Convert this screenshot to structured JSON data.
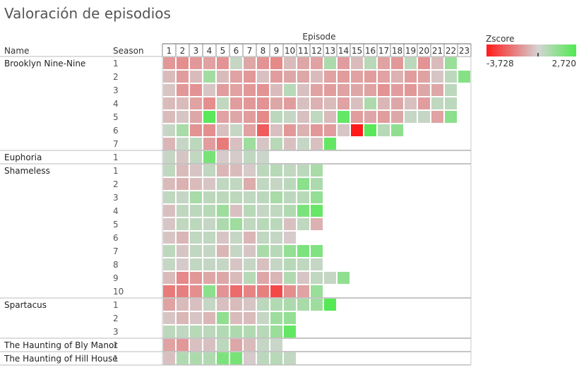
{
  "title": "Valoración de episodios",
  "chart_data": {
    "type": "heatmap",
    "title": "Valoración de episodios",
    "column_header": "Episode",
    "row_headers": [
      "Name",
      "Season"
    ],
    "episodes": [
      1,
      2,
      3,
      4,
      5,
      6,
      7,
      8,
      9,
      10,
      11,
      12,
      13,
      14,
      15,
      16,
      17,
      18,
      19,
      20,
      21,
      22,
      23
    ],
    "legend": {
      "title": "Zscore",
      "min_label": "-3,728",
      "max_label": "2,720",
      "min": -3.728,
      "max": 2.72,
      "color_low": "#ff1a1a",
      "color_mid": "#d4d4d4",
      "color_high": "#4fea4f"
    },
    "shows": [
      {
        "name": "Brooklyn Nine-Nine",
        "seasons": [
          {
            "season": "1",
            "z": [
              -1.2,
              -1.4,
              -1.2,
              -1.0,
              -1.3,
              0.3,
              -0.9,
              -1.3,
              -1.5,
              -0.5,
              -0.9,
              -1.0,
              0.8,
              -1.1,
              -0.5,
              0.6,
              -1.0,
              -1.2,
              0.5,
              -1.3,
              -0.5,
              1.2
            ]
          },
          {
            "season": "2",
            "z": [
              -0.5,
              -1.1,
              -0.5,
              1.0,
              -0.5,
              -1.0,
              -1.2,
              -0.4,
              -1.1,
              -0.9,
              -0.9,
              -0.5,
              -1.0,
              -1.1,
              -1.0,
              -1.1,
              -1.0,
              -0.7,
              -1.1,
              -1.0,
              -0.3,
              0.5,
              1.6
            ]
          },
          {
            "season": "3",
            "z": [
              -0.3,
              -1.2,
              -1.3,
              -0.3,
              -1.1,
              -1.0,
              -1.2,
              -1.3,
              -0.5,
              0.6,
              -0.4,
              -1.0,
              -1.1,
              -1.0,
              -0.9,
              -1.0,
              -1.3,
              -1.1,
              -1.2,
              -0.9,
              -0.9,
              0.5
            ]
          },
          {
            "season": "4",
            "z": [
              -0.5,
              -0.5,
              -1.0,
              -1.4,
              0.4,
              -1.1,
              -1.2,
              -1.3,
              -0.9,
              -1.1,
              -0.4,
              -0.7,
              -0.5,
              -1.0,
              -0.4,
              0.8,
              -0.6,
              -0.9,
              -0.4,
              -1.1,
              0.4,
              0.5
            ]
          },
          {
            "season": "5",
            "z": [
              -0.5,
              -0.3,
              -0.9,
              2.5,
              -1.0,
              -0.9,
              -1.1,
              -1.5,
              0.5,
              0.3,
              -0.4,
              0.4,
              -0.5,
              2.3,
              -1.1,
              -0.9,
              -1.1,
              -0.9,
              0.3,
              0.3,
              -1.0,
              1.5
            ]
          },
          {
            "season": "6",
            "z": [
              0.3,
              0.9,
              -1.3,
              -1.4,
              -0.4,
              0.3,
              -1.0,
              -2.4,
              -0.4,
              -1.2,
              -0.7,
              -1.2,
              -1.1,
              -0.3,
              -3.7,
              2.5,
              0.6,
              1.4
            ]
          },
          {
            "season": "7",
            "z": [
              -0.6,
              0.3,
              0.5,
              -1.1,
              -1.8,
              -0.4,
              1.1,
              -0.3,
              0.6,
              -0.4,
              0.3,
              -0.4,
              2.3
            ]
          }
        ]
      },
      {
        "name": "Euphoria",
        "seasons": [
          {
            "season": "1",
            "z": [
              0.3,
              -0.3,
              0.4,
              1.9,
              -0.2,
              -0.2,
              0.4,
              0.2
            ]
          }
        ]
      },
      {
        "name": "Shameless",
        "seasons": [
          {
            "season": "1",
            "z": [
              0.4,
              -0.5,
              -0.3,
              0.4,
              -0.6,
              -0.5,
              -0.2,
              0.5,
              0.6,
              0.4,
              0.5,
              0.9
            ]
          },
          {
            "season": "2",
            "z": [
              -0.5,
              -0.7,
              -0.5,
              -0.3,
              0.4,
              0.4,
              -0.8,
              0.4,
              0.3,
              0.5,
              1.5,
              0.8
            ]
          },
          {
            "season": "3",
            "z": [
              0.4,
              0.3,
              0.9,
              0.5,
              0.5,
              0.5,
              0.4,
              0.5,
              0.9,
              0.5,
              0.6,
              1.3
            ]
          },
          {
            "season": "4",
            "z": [
              -0.4,
              0.4,
              0.5,
              0.6,
              1.1,
              -0.4,
              0.6,
              0.3,
              0.4,
              0.7,
              1.8,
              2.2
            ]
          },
          {
            "season": "5",
            "z": [
              -0.3,
              0.4,
              0.5,
              0.3,
              0.8,
              1.1,
              0.4,
              0.6,
              0.5,
              -0.4,
              0.4,
              -0.7
            ]
          },
          {
            "season": "6",
            "z": [
              -0.3,
              -0.6,
              0.4,
              0.4,
              -0.3,
              0.3,
              -0.6,
              0.4,
              0.3,
              -0.2
            ]
          },
          {
            "season": "7",
            "z": [
              0.5,
              -0.3,
              0.4,
              0.3,
              -0.6,
              0.3,
              -0.3,
              0.9,
              0.6,
              1.3,
              1.8,
              1.7
            ]
          },
          {
            "season": "8",
            "z": [
              0.3,
              -0.2,
              0.4,
              0.3,
              0.3,
              -0.3,
              0.3,
              -0.4,
              0.3,
              0.6,
              0.4,
              0.3
            ]
          },
          {
            "season": "9",
            "z": [
              -0.5,
              -1.5,
              -1.2,
              -0.9,
              -0.9,
              -0.5,
              0.6,
              -0.9,
              -0.6,
              0.7,
              -0.3,
              0.4,
              0.3,
              1.4
            ]
          },
          {
            "season": "10",
            "z": [
              -1.8,
              -1.7,
              -1.4,
              1.5,
              -1.3,
              -2.1,
              -1.6,
              -1.7,
              -2.8,
              -1.4,
              -1.0,
              1.2
            ]
          }
        ]
      },
      {
        "name": "Spartacus",
        "seasons": [
          {
            "season": "1",
            "z": [
              -1.0,
              -0.5,
              -0.4,
              0.3,
              -0.4,
              -0.5,
              -0.3,
              0.5,
              0.7,
              0.8,
              0.9,
              1.1,
              2.6
            ]
          },
          {
            "season": "2",
            "z": [
              -0.3,
              -0.6,
              -0.3,
              -0.6,
              1.4,
              -0.5,
              -0.5,
              0.3,
              1.1,
              1.3
            ]
          },
          {
            "season": "3",
            "z": [
              0.5,
              0.4,
              0.6,
              0.5,
              0.7,
              0.8,
              0.7,
              0.6,
              1.2,
              2.3
            ]
          }
        ]
      },
      {
        "name": "The Haunting of Bly Manor",
        "seasons": [
          {
            "season": "1",
            "z": [
              -1.0,
              -1.2,
              -0.4,
              -0.4,
              0.5,
              -0.9,
              -0.5,
              0.3,
              0.2
            ]
          }
        ]
      },
      {
        "name": "The Haunting of Hill House",
        "seasons": [
          {
            "season": "1",
            "z": [
              -0.4,
              0.7,
              0.8,
              0.7,
              1.8,
              1.9,
              -0.2,
              0.5,
              0.6,
              0.4
            ]
          }
        ]
      }
    ]
  }
}
